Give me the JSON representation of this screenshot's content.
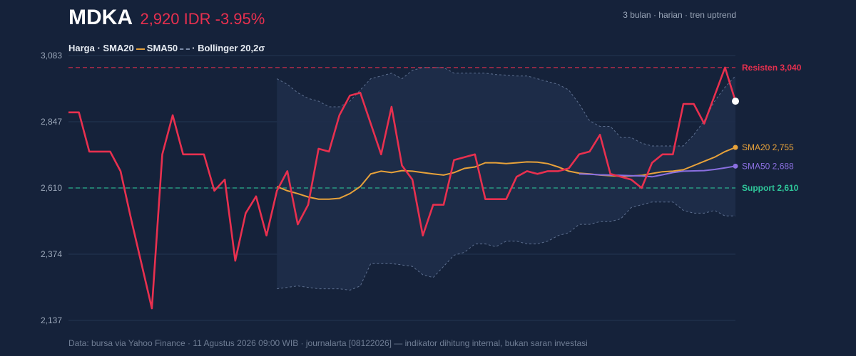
{
  "header": {
    "ticker": "MDKA",
    "quote": "2,920 IDR -3.95%",
    "subtitle": "3 bulan · harian · tren uptrend"
  },
  "legend": {
    "price": "Harga",
    "sep1": " · ",
    "sma20": "SMA20",
    "sma50": "SMA50",
    "bollinger": "· Bollinger 20,2σ"
  },
  "footer": "Data: bursa via Yahoo Finance · 11 Agustus 2026 09:00 WIB · journalarta [08122026] — indikator dihitung internal, bukan saran investasi",
  "colors": {
    "background": "#15223a",
    "price": "#e8304f",
    "sma20": "#e8a23a",
    "sma50": "#8a6fe0",
    "band": "#1e2e4a",
    "resistance": "#e8304f",
    "support": "#2fc79a"
  },
  "chart_data": {
    "type": "line",
    "y_ticks": [
      "3,083",
      "2,847",
      "2,610",
      "2,374",
      "2,137"
    ],
    "ylim": [
      2137,
      3083
    ],
    "grid": true,
    "price": [
      2880,
      2880,
      2740,
      2740,
      2740,
      2670,
      2500,
      2340,
      2180,
      2730,
      2870,
      2730,
      2730,
      2730,
      2600,
      2640,
      2350,
      2520,
      2580,
      2440,
      2600,
      2670,
      2480,
      2550,
      2750,
      2740,
      2870,
      2940,
      2950,
      2840,
      2730,
      2900,
      2690,
      2640,
      2440,
      2550,
      2550,
      2710,
      2720,
      2730,
      2570,
      2570,
      2570,
      2650,
      2670,
      2660,
      2670,
      2670,
      2680,
      2730,
      2740,
      2800,
      2660,
      2650,
      2640,
      2610,
      2700,
      2730,
      2730,
      2910,
      2910,
      2840,
      2940,
      3040,
      2920
    ],
    "sma20": [
      null,
      null,
      null,
      null,
      null,
      null,
      null,
      null,
      null,
      null,
      null,
      null,
      null,
      null,
      null,
      null,
      null,
      null,
      null,
      null,
      2615,
      2600,
      2590,
      2578,
      2570,
      2570,
      2573,
      2590,
      2615,
      2660,
      2670,
      2665,
      2672,
      2670,
      2665,
      2660,
      2656,
      2665,
      2680,
      2685,
      2700,
      2700,
      2697,
      2700,
      2703,
      2702,
      2697,
      2685,
      2670,
      2663,
      2660,
      2656,
      2654,
      2652,
      2653,
      2655,
      2662,
      2668,
      2670,
      2675,
      2690,
      2705,
      2720,
      2740,
      2755
    ],
    "sma50": [
      null,
      null,
      null,
      null,
      null,
      null,
      null,
      null,
      null,
      null,
      null,
      null,
      null,
      null,
      null,
      null,
      null,
      null,
      null,
      null,
      null,
      null,
      null,
      null,
      null,
      null,
      null,
      null,
      null,
      null,
      null,
      null,
      null,
      null,
      null,
      null,
      null,
      null,
      null,
      null,
      null,
      null,
      null,
      null,
      null,
      null,
      null,
      null,
      null,
      2660,
      2659,
      2657,
      2656,
      2655,
      2654,
      2653,
      2650,
      2657,
      2665,
      2670,
      2671,
      2672,
      2676,
      2682,
      2688
    ],
    "bb_upper": [
      null,
      null,
      null,
      null,
      null,
      null,
      null,
      null,
      null,
      null,
      null,
      null,
      null,
      null,
      null,
      null,
      null,
      null,
      null,
      null,
      3000,
      2980,
      2950,
      2930,
      2920,
      2900,
      2900,
      2920,
      2960,
      3000,
      3010,
      3020,
      3000,
      3030,
      3040,
      3040,
      3040,
      3020,
      3020,
      3020,
      3020,
      3015,
      3013,
      3010,
      3010,
      3000,
      2990,
      2980,
      2960,
      2910,
      2850,
      2830,
      2830,
      2790,
      2790,
      2770,
      2760,
      2760,
      2760,
      2760,
      2800,
      2850,
      2920,
      2970,
      3010
    ],
    "bb_lower": [
      null,
      null,
      null,
      null,
      null,
      null,
      null,
      null,
      null,
      null,
      null,
      null,
      null,
      null,
      null,
      null,
      null,
      null,
      null,
      null,
      2250,
      2255,
      2260,
      2255,
      2250,
      2250,
      2250,
      2245,
      2260,
      2340,
      2340,
      2340,
      2335,
      2330,
      2300,
      2290,
      2330,
      2370,
      2380,
      2410,
      2410,
      2400,
      2420,
      2420,
      2410,
      2410,
      2420,
      2440,
      2450,
      2480,
      2480,
      2490,
      2490,
      2500,
      2540,
      2550,
      2560,
      2560,
      2560,
      2530,
      2520,
      2520,
      2530,
      2510,
      2510
    ],
    "levels": [
      {
        "name": "Resisten",
        "value": 3040,
        "label": "Resisten 3,040"
      },
      {
        "name": "Support",
        "value": 2610,
        "label": "Support 2,610"
      }
    ],
    "ma_labels": {
      "sma20": "SMA20 2,755",
      "sma50": "SMA50 2,688"
    },
    "last_price": 2920
  }
}
